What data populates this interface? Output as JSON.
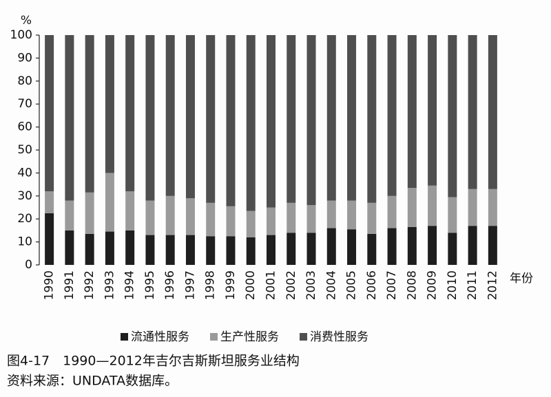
{
  "chart_data": {
    "type": "stacked_bar",
    "y_unit": "%",
    "x_label": "年份",
    "caption": "图4-17　1990—2012年吉尔吉斯斯坦服务业结构",
    "source": "资料来源：UNDATA数据库。",
    "categories": [
      "1990",
      "1991",
      "1992",
      "1993",
      "1994",
      "1995",
      "1996",
      "1997",
      "1998",
      "1999",
      "2000",
      "2001",
      "2002",
      "2003",
      "2004",
      "2005",
      "2006",
      "2007",
      "2008",
      "2009",
      "2010",
      "2011",
      "2012"
    ],
    "series": [
      {
        "name": "流通性服务",
        "color": "#1e1e1e",
        "values": [
          22.5,
          15,
          13.5,
          14.5,
          15,
          13,
          13,
          13,
          12.5,
          12.5,
          12,
          13,
          14,
          14,
          16,
          15.5,
          13.5,
          16,
          16.5,
          17,
          14,
          17,
          17
        ]
      },
      {
        "name": "生产性服务",
        "color": "#9a9a9a",
        "values": [
          9.5,
          13,
          18,
          25.5,
          17,
          15,
          17,
          16,
          14.5,
          13,
          11.5,
          12,
          13,
          12,
          12,
          12.5,
          13.5,
          14,
          17,
          17.5,
          15.5,
          16,
          16
        ]
      },
      {
        "name": "消费性服务",
        "color": "#4f4f4f",
        "values": [
          68,
          72,
          68.5,
          60,
          68,
          72,
          70,
          71,
          73,
          74.5,
          76.5,
          75,
          73,
          74,
          72,
          72,
          73,
          70,
          66.5,
          65.5,
          70.5,
          67,
          67
        ]
      }
    ],
    "ylim": [
      0,
      100
    ],
    "yticks": [
      0,
      10,
      20,
      30,
      40,
      50,
      60,
      70,
      80,
      90,
      100
    ]
  }
}
